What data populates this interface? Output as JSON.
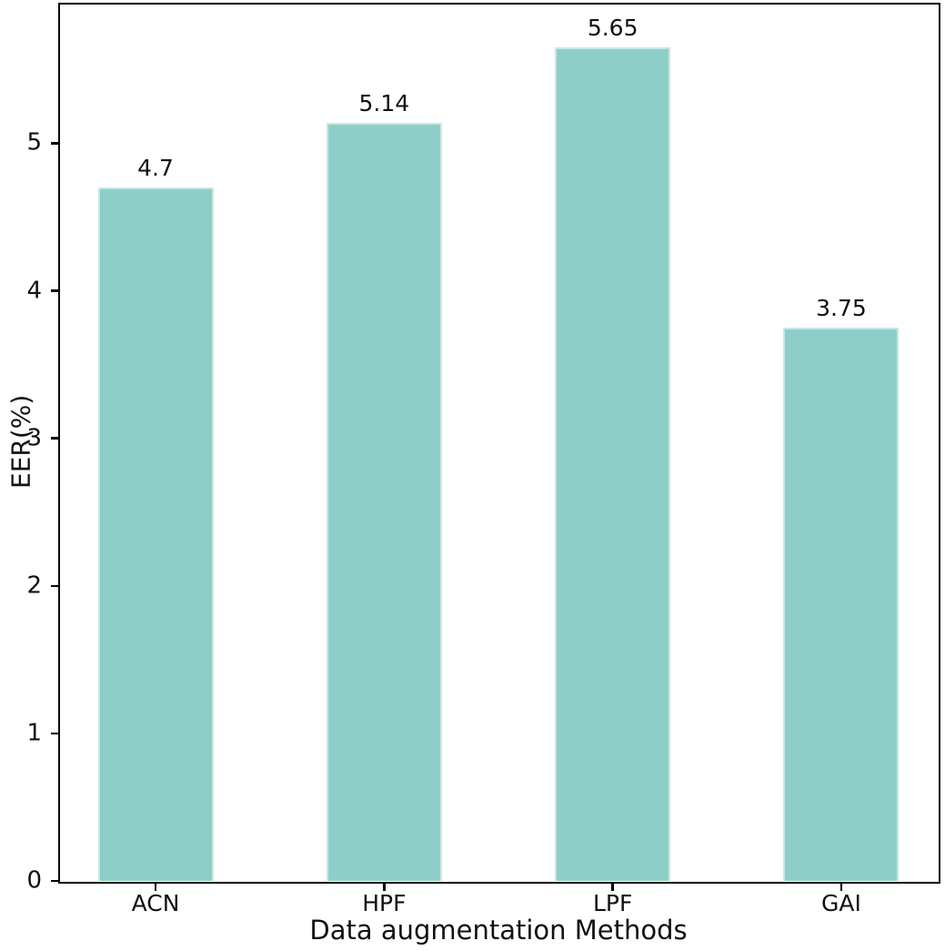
{
  "chart_data": {
    "type": "bar",
    "categories": [
      "ACN",
      "HPF",
      "LPF",
      "GAI"
    ],
    "values": [
      4.7,
      5.14,
      5.65,
      3.75
    ],
    "value_labels": [
      "4.7",
      "5.14",
      "5.65",
      "3.75"
    ],
    "title": "",
    "xlabel": "Data augmentation Methods",
    "ylabel": "EER(%)",
    "yticks": [
      0,
      1,
      2,
      3,
      4,
      5
    ],
    "ylim": [
      0,
      5.94
    ],
    "grid": false,
    "legend_position": "none",
    "bar_color": "#8dcfc8",
    "bar_edge_color": "#c6e9e4",
    "axis_color": "#000000",
    "text_color": "#111111",
    "background_color": "#ffffff"
  }
}
